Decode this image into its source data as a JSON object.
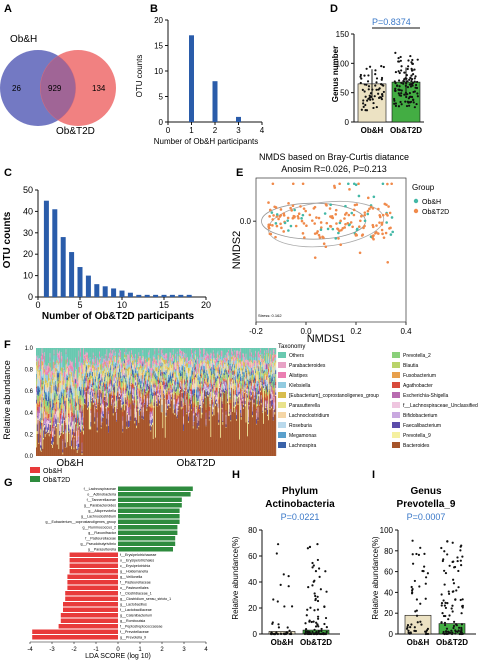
{
  "panels": {
    "A": {
      "letter": "A",
      "set1_label": "Ob&H",
      "set2_label": "Ob&T2D",
      "only_set1": "26",
      "shared": "929",
      "only_set2": "134"
    },
    "B": {
      "letter": "B",
      "ylabel": "OTU counts",
      "xlabel": "Number of Ob&H participants"
    },
    "C": {
      "letter": "C",
      "ylabel": "OTU counts",
      "xlabel": "Number of Ob&T2D participants"
    },
    "D": {
      "letter": "D",
      "ylabel": "Genus number",
      "pvalue": "P=0.8374"
    },
    "E": {
      "letter": "E",
      "title": "NMDS based on Bray-Curtis diatance",
      "subtitle": "Anosim  R=0.026,  P=0.213",
      "xlabel": "NMDS1",
      "ylabel": "NMDS2",
      "stress": "Stress: 0.162",
      "legend_title": "Group",
      "legend": [
        "Ob&H",
        "Ob&T2D"
      ]
    },
    "F": {
      "letter": "F",
      "ylabel": "Relative abundance",
      "group1": "Ob&H",
      "group2": "Ob&T2D",
      "legend_title": "Taxonomy"
    },
    "G": {
      "letter": "G",
      "xlabel": "LDA SCORE (log 10)",
      "legend": [
        "Ob&H",
        "Ob&T2D"
      ]
    },
    "H": {
      "letter": "H",
      "title1": "Phylum",
      "title2": "Actinobacteria",
      "pvalue": "P=0.0221",
      "ylabel": "Relative abundance(%)"
    },
    "I": {
      "letter": "I",
      "title1": "Genus",
      "title2": "Prevotella_9",
      "pvalue": "P=0.0007",
      "ylabel": "Relative abundance(%)"
    }
  },
  "colors": {
    "ob_h": "#5b62b8",
    "ob_t2d": "#ef6b6b",
    "bar_blue": "#2a5caa",
    "ob_h_bar": "#ece2c3",
    "ob_t2d_bar": "#43ad43",
    "lda_red": "#e83a3a",
    "lda_green": "#2e8b3e",
    "pval": "#3a78c8",
    "nmds_h": "#43b8a6",
    "nmds_t2d": "#f08a4b"
  },
  "chart_data": [
    {
      "panel": "B",
      "type": "bar",
      "x": [
        1,
        2,
        3
      ],
      "values": [
        17,
        8,
        1
      ],
      "xlim": [
        0,
        4
      ],
      "ylim": [
        0,
        20
      ],
      "xticks": [
        "0",
        "1",
        "2",
        "3",
        "4"
      ],
      "yticks": [
        "0",
        "5",
        "10",
        "15",
        "20"
      ]
    },
    {
      "panel": "C",
      "type": "bar",
      "x": [
        1,
        2,
        3,
        4,
        5,
        6,
        7,
        8,
        9,
        10,
        11,
        12,
        13,
        14,
        15,
        16,
        17,
        18
      ],
      "values": [
        45,
        41,
        28,
        21,
        14,
        10,
        6,
        5,
        4,
        3,
        2,
        1,
        1,
        1,
        1,
        1,
        1,
        1
      ],
      "xlim": [
        0,
        20
      ],
      "ylim": [
        0,
        50
      ],
      "xticks": [
        "0",
        "5",
        "10",
        "15",
        "20"
      ],
      "yticks": [
        "0",
        "10",
        "20",
        "30",
        "40",
        "50"
      ]
    },
    {
      "panel": "D",
      "type": "bar",
      "categories": [
        "Ob&H",
        "Ob&T2D"
      ],
      "values": [
        65,
        68
      ],
      "ylim": [
        0,
        150
      ],
      "yticks": [
        "0",
        "50",
        "100",
        "150"
      ]
    },
    {
      "panel": "E",
      "type": "scatter",
      "xlim": [
        -0.2,
        0.4
      ],
      "ylim": [
        -0.35,
        0.15
      ],
      "xticks": [
        "-0.2",
        "0.0",
        "0.2",
        "0.4"
      ],
      "yticks": [
        "0.0"
      ]
    },
    {
      "panel": "F",
      "type": "bar",
      "yticks": [
        "1.0",
        "0.8",
        "0.6",
        "0.4",
        "0.2",
        "0.0"
      ],
      "legend": [
        {
          "name": "Others",
          "color": "#69c9b0"
        },
        {
          "name": "Parabacteroides",
          "color": "#e8a3c6"
        },
        {
          "name": "Alistipes",
          "color": "#eb7fb2"
        },
        {
          "name": "Klebsiella",
          "color": "#92cbe0"
        },
        {
          "name": "[Eubacterium]_coprostanoligenes_group",
          "color": "#d8bd4e"
        },
        {
          "name": "Parasutterella",
          "color": "#e9e28b"
        },
        {
          "name": "Lachnoclostridium",
          "color": "#f5d6a6"
        },
        {
          "name": "Roseburia",
          "color": "#b9d9ec"
        },
        {
          "name": "Megamonas",
          "color": "#5aa0cc"
        },
        {
          "name": "Lachnospira",
          "color": "#3a62a8"
        },
        {
          "name": "Prevotella_2",
          "color": "#8ad07a"
        },
        {
          "name": "Blautia",
          "color": "#b9d36a"
        },
        {
          "name": "Fusobacterium",
          "color": "#e8a04c"
        },
        {
          "name": "Agathobacter",
          "color": "#d84a3c"
        },
        {
          "name": "Escherichia-Shigella",
          "color": "#b86bb0"
        },
        {
          "name": "f__Lachnospiraceae_Unclassified",
          "color": "#efc6e0"
        },
        {
          "name": "Bifidobacterium",
          "color": "#c9a9e0"
        },
        {
          "name": "Faecalibacterium",
          "color": "#5b4caa"
        },
        {
          "name": "Prevotella_9",
          "color": "#f5f0a0"
        },
        {
          "name": "Bacteroides",
          "color": "#a6542a"
        }
      ]
    },
    {
      "panel": "G",
      "type": "bar",
      "xlim": [
        -4,
        4
      ],
      "xticks": [
        "-4",
        "-3",
        "-2",
        "-1",
        "0",
        "1",
        "2",
        "3",
        "4"
      ],
      "green": [
        {
          "label": "f__Lachnospiraceae",
          "value": 3.4
        },
        {
          "label": "o__Actinobacteria",
          "value": 3.3
        },
        {
          "label": "f__Tannerellaceae",
          "value": 2.9
        },
        {
          "label": "g__Parabacteroides",
          "value": 2.9
        },
        {
          "label": "g__Alloprevotella",
          "value": 2.8
        },
        {
          "label": "g__Lachnoclostridium",
          "value": 2.8
        },
        {
          "label": "g__Eubacterium__coprostanoligenes_group",
          "value": 2.8
        },
        {
          "label": "g__Ruminococcus_2",
          "value": 2.7
        },
        {
          "label": "g__Flavonifractor",
          "value": 2.7
        },
        {
          "label": "f__Pasteurellaceae",
          "value": 2.6
        },
        {
          "label": "g__Pseudobutyrivibrio",
          "value": 2.6
        },
        {
          "label": "g__Parasutterella",
          "value": 2.5
        }
      ],
      "red": [
        {
          "label": "f__Erysipelotrichaceae",
          "value": -2.2
        },
        {
          "label": "o__Erysipelotrichales",
          "value": -2.2
        },
        {
          "label": "c__Erysipelotrichia",
          "value": -2.2
        },
        {
          "label": "g__Holdemanella",
          "value": -2.2
        },
        {
          "label": "g__Veillonella",
          "value": -2.3
        },
        {
          "label": "f__Pasteurellaceae",
          "value": -2.3
        },
        {
          "label": "o__Pasteurellales",
          "value": -2.3
        },
        {
          "label": "f__Clostridiaceae_1",
          "value": -2.4
        },
        {
          "label": "g__Clostridium_sensu_stricto_1",
          "value": -2.4
        },
        {
          "label": "g__Lactobacillus",
          "value": -2.5
        },
        {
          "label": "f__Lactobacillaceae",
          "value": -2.5
        },
        {
          "label": "g__Catenibacterium",
          "value": -2.6
        },
        {
          "label": "g__Romboutsia",
          "value": -2.6
        },
        {
          "label": "f__Peptostreptococcaceae",
          "value": -2.7
        },
        {
          "label": "f__Prevotellaceae",
          "value": -3.9
        },
        {
          "label": "g__Prevotella_9",
          "value": -3.9
        }
      ]
    },
    {
      "panel": "H",
      "type": "bar",
      "categories": [
        "Ob&H",
        "Ob&T2D"
      ],
      "values": [
        2,
        3
      ],
      "ylim": [
        0,
        80
      ],
      "yticks": [
        "0",
        "20",
        "40",
        "60",
        "80"
      ]
    },
    {
      "panel": "I",
      "type": "bar",
      "categories": [
        "Ob&H",
        "Ob&T2D"
      ],
      "values": [
        18,
        10
      ],
      "ylim": [
        0,
        100
      ],
      "yticks": [
        "0",
        "20",
        "40",
        "60",
        "80",
        "100"
      ]
    }
  ]
}
